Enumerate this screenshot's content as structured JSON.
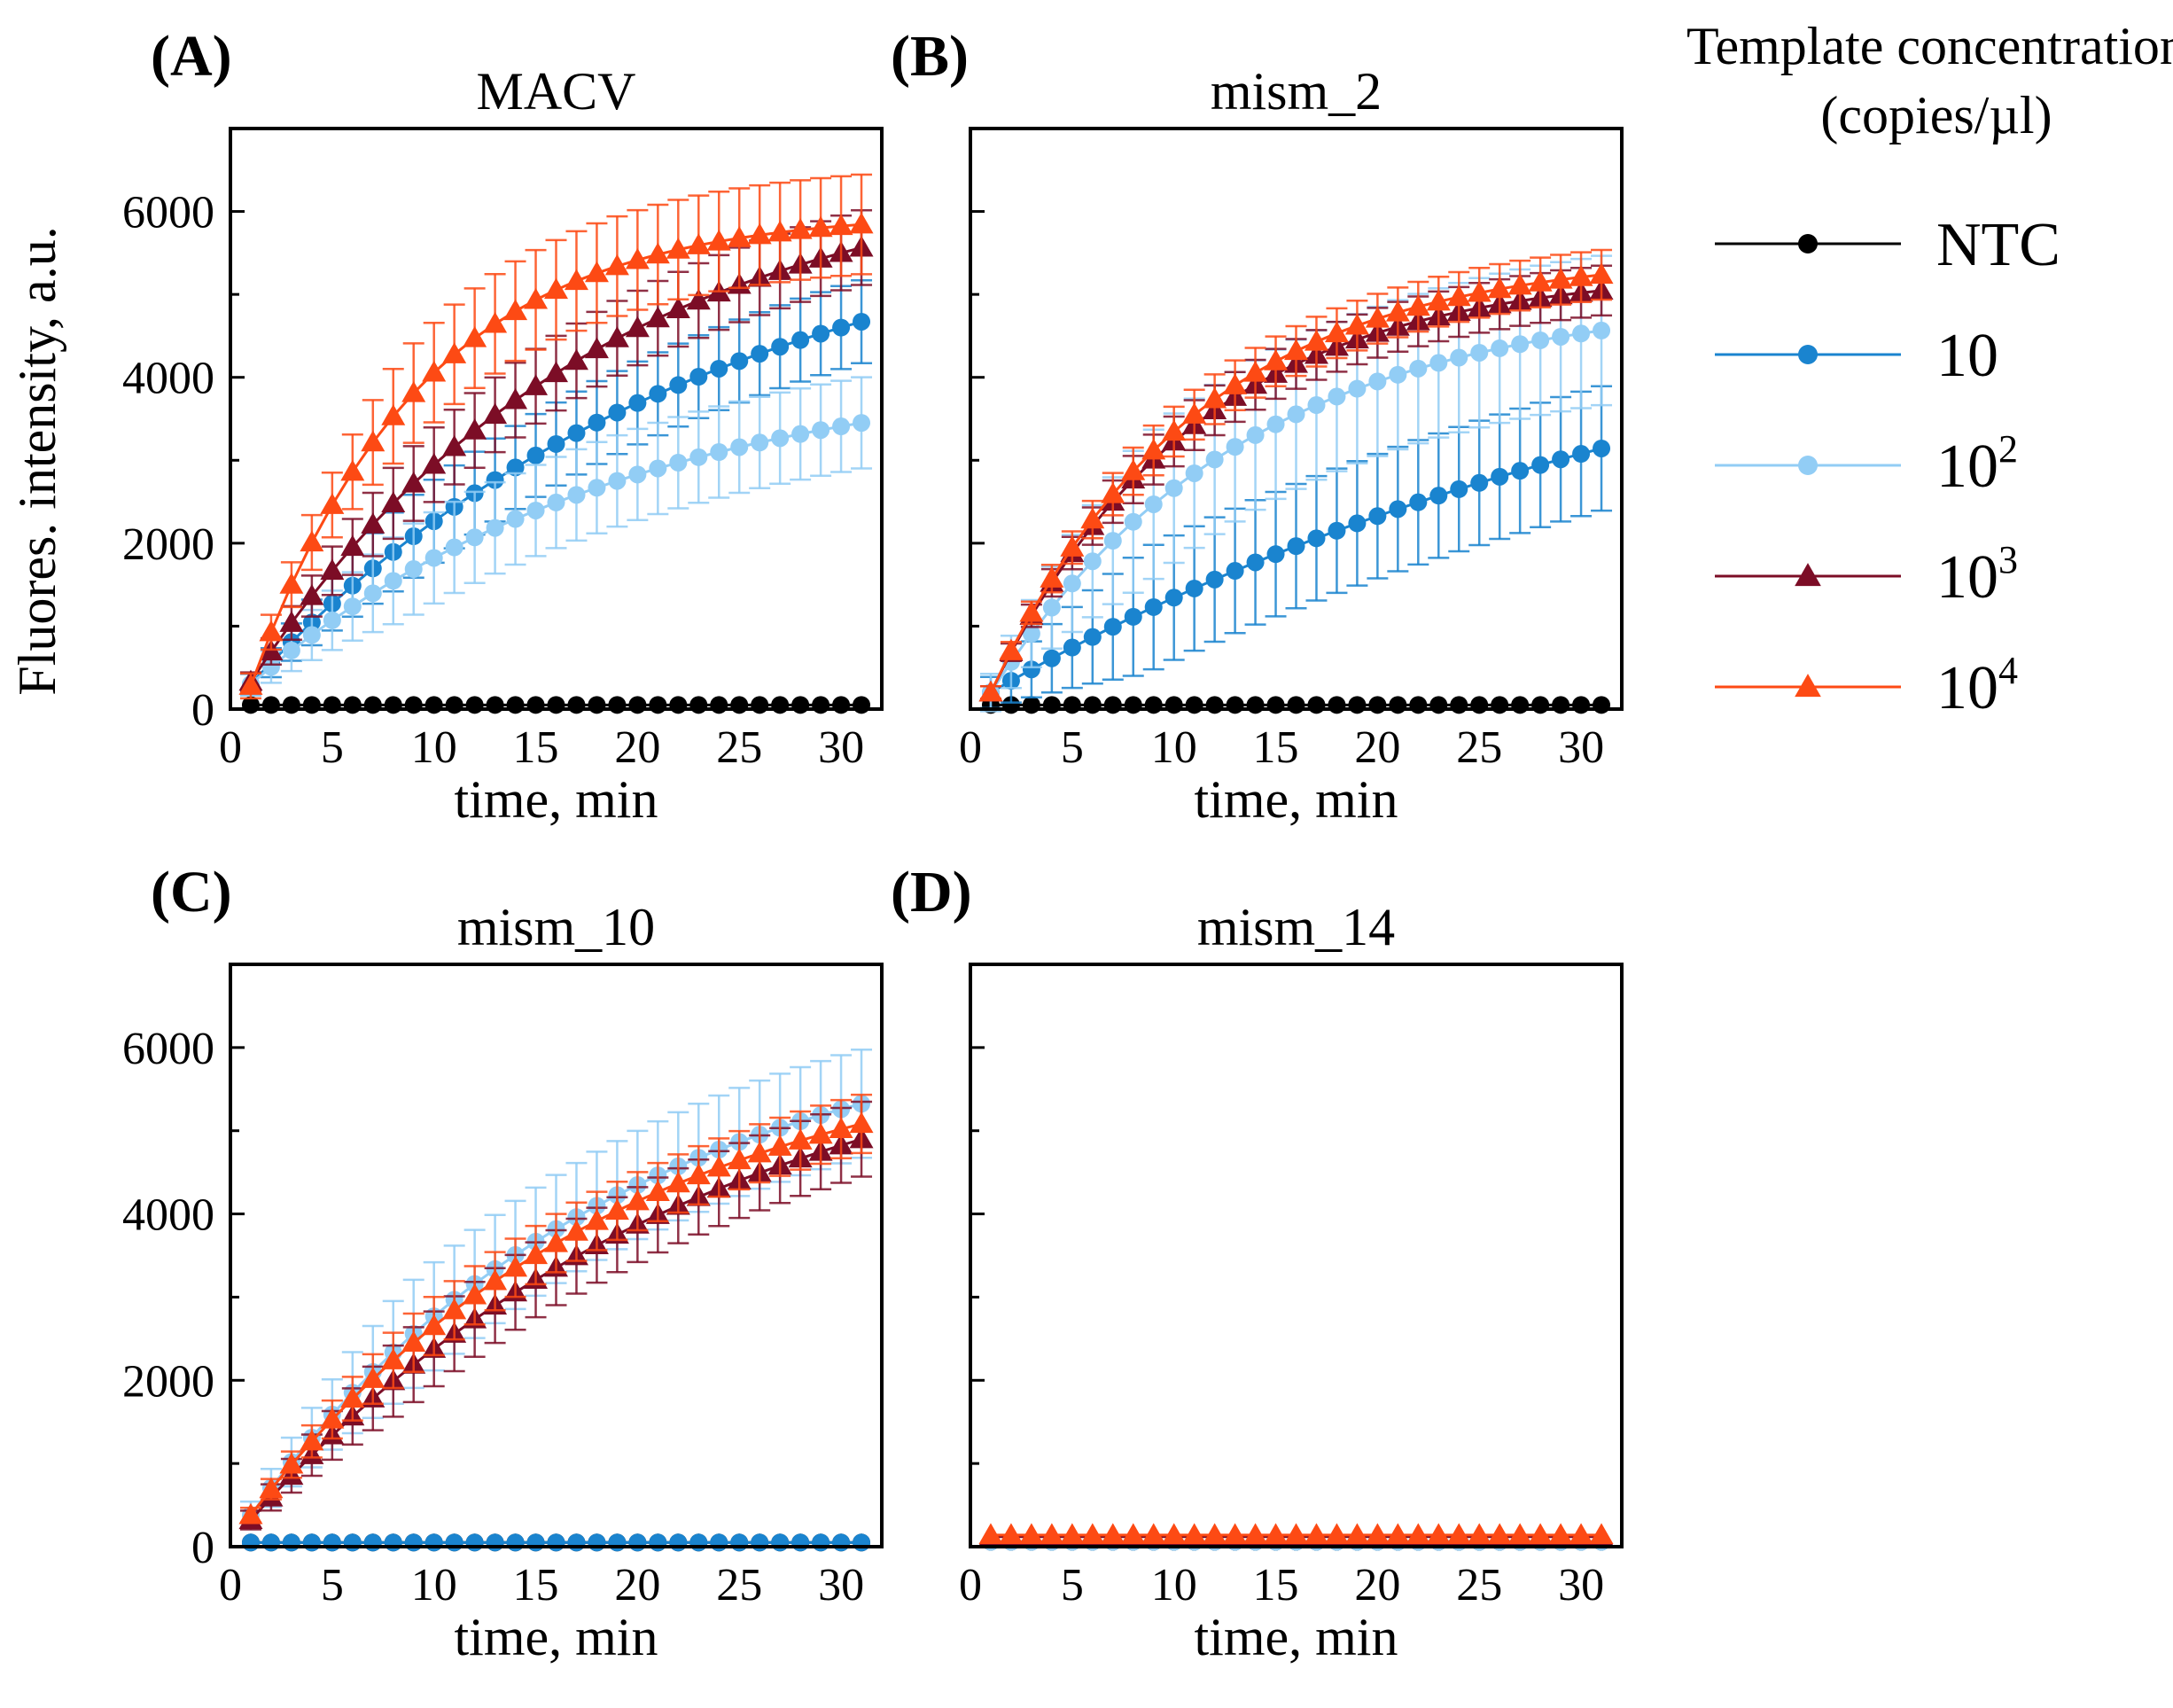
{
  "figure": {
    "ylabel": "Fluores. intensity, a.u.",
    "legend": {
      "title_line1": "Template concentration",
      "title_line2": "(copies/µl)",
      "entries": [
        {
          "key": "NTC",
          "base": "NTC",
          "exp": "",
          "color": "#000000",
          "marker": "circle"
        },
        {
          "key": "c10",
          "base": "10",
          "exp": "",
          "color": "#1a84cf",
          "marker": "circle"
        },
        {
          "key": "c100",
          "base": "10",
          "exp": "2",
          "color": "#92cdf5",
          "marker": "circle"
        },
        {
          "key": "c1000",
          "base": "10",
          "exp": "3",
          "color": "#7c0d26",
          "marker": "triangle"
        },
        {
          "key": "c10000",
          "base": "10",
          "exp": "4",
          "color": "#fd4a14",
          "marker": "triangle"
        }
      ]
    }
  },
  "chart_data": [
    {
      "type": "line",
      "panel_label": "(A)",
      "title": "MACV",
      "xlabel": "time, min",
      "ylabel": "Fluores. intensity, a.u.",
      "xlim": [
        0,
        32
      ],
      "ylim": [
        0,
        7000
      ],
      "xticks": [
        0,
        5,
        10,
        15,
        20,
        25,
        30
      ],
      "yticks": [
        0,
        2000,
        4000,
        6000
      ],
      "x_start": 1,
      "x_end": 31,
      "n_points": 31,
      "series": [
        {
          "key": "NTC",
          "shape": "flat",
          "start": 50,
          "end": 50,
          "k": 0.1,
          "err": 0
        },
        {
          "key": "c10",
          "shape": "rise",
          "start": 300,
          "end": 6200,
          "k": 0.045,
          "err": 500
        },
        {
          "key": "c100",
          "shape": "rise",
          "start": 300,
          "end": 4200,
          "k": 0.055,
          "err": 550
        },
        {
          "key": "c1000",
          "shape": "rise",
          "start": 330,
          "end": 6600,
          "k": 0.06,
          "err": 450
        },
        {
          "key": "c10000",
          "shape": "rise",
          "start": 280,
          "end": 6000,
          "k": 0.12,
          "err": 600
        }
      ]
    },
    {
      "type": "line",
      "panel_label": "(B)",
      "title": "mism_2",
      "xlabel": "time, min",
      "ylabel": "",
      "xlim": [
        0,
        32
      ],
      "ylim": [
        0,
        7000
      ],
      "xticks": [
        0,
        5,
        10,
        15,
        20,
        25,
        30
      ],
      "yticks": [],
      "x_start": 1,
      "x_end": 31,
      "n_points": 31,
      "series": [
        {
          "key": "NTC",
          "shape": "flat",
          "start": 50,
          "end": 50,
          "k": 0.1,
          "err": 0
        },
        {
          "key": "c10",
          "shape": "rise",
          "start": 200,
          "end": 5500,
          "k": 0.027,
          "err": 750
        },
        {
          "key": "c100",
          "shape": "rise",
          "start": 200,
          "end": 5000,
          "k": 0.08,
          "err": 900
        },
        {
          "key": "c1000",
          "shape": "rise",
          "start": 200,
          "end": 5300,
          "k": 0.1,
          "err": 300
        },
        {
          "key": "c10000",
          "shape": "rise",
          "start": 200,
          "end": 5500,
          "k": 0.1,
          "err": 300
        }
      ]
    },
    {
      "type": "line",
      "panel_label": "(C)",
      "title": "mism_10",
      "xlabel": "time, min",
      "ylabel": "",
      "xlim": [
        0,
        32
      ],
      "ylim": [
        0,
        7000
      ],
      "xticks": [
        0,
        5,
        10,
        15,
        20,
        25,
        30
      ],
      "yticks": [
        0,
        2000,
        4000,
        6000
      ],
      "x_start": 1,
      "x_end": 31,
      "n_points": 31,
      "series": [
        {
          "key": "NTC",
          "shape": "flat",
          "start": 50,
          "end": 50,
          "k": 0.1,
          "err": 0
        },
        {
          "key": "c10",
          "shape": "flat",
          "start": 50,
          "end": 50,
          "k": 0.1,
          "err": 0
        },
        {
          "key": "c100",
          "shape": "rise",
          "start": 380,
          "end": 6500,
          "k": 0.055,
          "err": 650
        },
        {
          "key": "c1000",
          "shape": "rise",
          "start": 320,
          "end": 6500,
          "k": 0.045,
          "err": 450
        },
        {
          "key": "c10000",
          "shape": "rise",
          "start": 380,
          "end": 6200,
          "k": 0.055,
          "err": 350
        }
      ]
    },
    {
      "type": "line",
      "panel_label": "(D)",
      "title": "mism_14",
      "xlabel": "time, min",
      "ylabel": "",
      "xlim": [
        0,
        32
      ],
      "ylim": [
        0,
        7000
      ],
      "xticks": [
        0,
        5,
        10,
        15,
        20,
        25,
        30
      ],
      "yticks": [],
      "x_start": 1,
      "x_end": 31,
      "n_points": 31,
      "series": [
        {
          "key": "NTC",
          "shape": "flat",
          "start": 60,
          "end": 60,
          "k": 0.1,
          "err": 0
        },
        {
          "key": "c10",
          "shape": "flat",
          "start": 60,
          "end": 60,
          "k": 0.1,
          "err": 0
        },
        {
          "key": "c100",
          "shape": "flat",
          "start": 60,
          "end": 60,
          "k": 0.1,
          "err": 0
        },
        {
          "key": "c1000",
          "shape": "flat",
          "start": 120,
          "end": 120,
          "k": 0.1,
          "err": 0
        },
        {
          "key": "c10000",
          "shape": "flat",
          "start": 140,
          "end": 140,
          "k": 0.1,
          "err": 0
        }
      ]
    }
  ]
}
